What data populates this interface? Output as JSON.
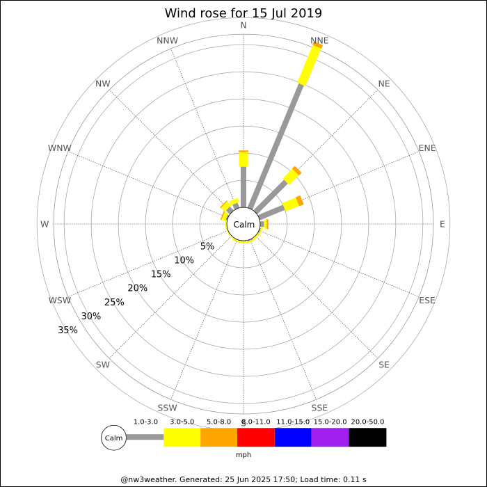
{
  "chart_data": {
    "type": "wind-rose",
    "title": "Wind rose for 15 Jul 2019",
    "directions": [
      "N",
      "NNE",
      "NE",
      "ENE",
      "E",
      "ESE",
      "SE",
      "SSE",
      "S",
      "SSW",
      "SW",
      "WSW",
      "W",
      "WNW",
      "NW",
      "NNW"
    ],
    "ring_percent": [
      5,
      10,
      15,
      20,
      25,
      30,
      35
    ],
    "ring_labels": [
      "5%",
      "10%",
      "15%",
      "20%",
      "25%",
      "30%",
      "35%"
    ],
    "calm_label": "Calm",
    "unit_label": "mph",
    "speed_bins": [
      {
        "label": "1.0-3.0",
        "color": "#999999"
      },
      {
        "label": "3.0-5.0",
        "color": "#ffff00"
      },
      {
        "label": "5.0-8.0",
        "color": "#ffa500"
      },
      {
        "label": "8.0-11.0",
        "color": "#ff0000"
      },
      {
        "label": "11.0-15.0",
        "color": "#0000ff"
      },
      {
        "label": "15.0-20.0",
        "color": "#a020f0"
      },
      {
        "label": "20.0-50.0",
        "color": "#000000"
      }
    ],
    "series": [
      {
        "direction": "N",
        "cumulative_percent": [
          7.5,
          10.2,
          10.5
        ]
      },
      {
        "direction": "NNE",
        "cumulative_percent": [
          24.8,
          32.3,
          33.0
        ]
      },
      {
        "direction": "NE",
        "cumulative_percent": [
          8.0,
          10.5,
          11.2
        ]
      },
      {
        "direction": "ENE",
        "cumulative_percent": [
          5.0,
          7.7,
          8.6
        ]
      },
      {
        "direction": "E",
        "cumulative_percent": [
          0.7,
          1.2,
          1.5
        ]
      },
      {
        "direction": "ESE",
        "cumulative_percent": [
          0.2,
          0.5,
          0.5
        ]
      },
      {
        "direction": "SE",
        "cumulative_percent": [
          0.0,
          0.3,
          0.3
        ]
      },
      {
        "direction": "SSE",
        "cumulative_percent": [
          0.2,
          0.5,
          0.5
        ]
      },
      {
        "direction": "S",
        "cumulative_percent": [
          0.1,
          0.4,
          0.4
        ]
      },
      {
        "direction": "SSW",
        "cumulative_percent": [
          0.1,
          0.4,
          0.4
        ]
      },
      {
        "direction": "SW",
        "cumulative_percent": [
          0.0,
          0.2,
          0.2
        ]
      },
      {
        "direction": "WSW",
        "cumulative_percent": [
          0.0,
          0.2,
          0.2
        ]
      },
      {
        "direction": "W",
        "cumulative_percent": [
          0.0,
          0.3,
          0.3
        ]
      },
      {
        "direction": "WNW",
        "cumulative_percent": [
          0.3,
          1.0,
          1.2
        ]
      },
      {
        "direction": "NW",
        "cumulative_percent": [
          1.0,
          2.0,
          2.2
        ]
      },
      {
        "direction": "NNW",
        "cumulative_percent": [
          1.0,
          1.8,
          1.8
        ]
      }
    ]
  },
  "footer": "@nw3weather. Generated: 25 Jun 2025 17:50; Load time: 0.11 s"
}
